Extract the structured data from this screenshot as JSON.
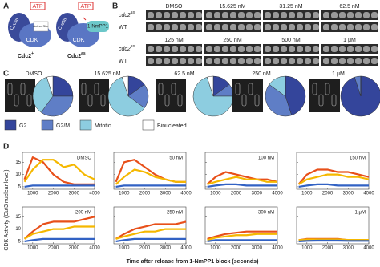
{
  "panel_a": {
    "label": "A",
    "cyclin": "Cyclin",
    "cdk": "CDK",
    "atp": "ATP",
    "site": "Active Site",
    "inhibitor": "1-NmPP1",
    "left_caption": {
      "name": "Cdc2",
      "sup": "+"
    },
    "right_caption": {
      "name": "Cdc2",
      "sup": "as"
    }
  },
  "panel_b": {
    "label": "B",
    "row_labels": [
      {
        "name": "cdc2",
        "sup": "as"
      },
      {
        "name": "WT"
      }
    ],
    "blocks": [
      [
        "DMSO",
        "15.625 nM",
        "31.25 nM",
        "62.5 nM"
      ],
      [
        "125 nM",
        "250 nM",
        "500 nM",
        "1 μM"
      ]
    ]
  },
  "panel_c": {
    "label": "C",
    "legend": [
      {
        "name": "G2",
        "color": "#34459b"
      },
      {
        "name": "G2/M",
        "color": "#5f7ec6"
      },
      {
        "name": "Mitotic",
        "color": "#8dcde0"
      },
      {
        "name": "Binucleated",
        "color": "#ffffff"
      }
    ],
    "pies": [
      {
        "label": "DMSO",
        "values": [
          25,
          35,
          35,
          5
        ]
      },
      {
        "label": "15.625 nM",
        "values": [
          15,
          20,
          60,
          5
        ]
      },
      {
        "label": "62.5 nM",
        "values": [
          15,
          10,
          70,
          5
        ]
      },
      {
        "label": "250 nM",
        "values": [
          45,
          40,
          15,
          0
        ]
      },
      {
        "label": "1 μM",
        "values": [
          95,
          5,
          0,
          0
        ]
      }
    ]
  },
  "panel_d": {
    "label": "D",
    "y_label": "CDK Activity (Cut3 nuclear level)",
    "x_label": "Time after release from 1-NmPP1 block (seconds)",
    "xlim": [
      500,
      4000
    ],
    "ylim": [
      4,
      19
    ],
    "xticks": [
      1000,
      2000,
      3000,
      4000
    ],
    "yticks": [
      5,
      10,
      15
    ],
    "x": [
      600,
      1000,
      1500,
      2000,
      2500,
      3000,
      3500,
      4000
    ],
    "colors": [
      "#e8501a",
      "#f5b800",
      "#3262c4"
    ],
    "plots": [
      {
        "label": "DMSO",
        "series": [
          [
            8,
            17,
            15,
            10,
            7,
            6,
            6,
            6
          ],
          [
            7,
            12,
            16,
            16,
            13,
            14,
            10,
            8
          ],
          [
            5,
            5.5,
            5.5,
            5.5,
            5.5,
            5.5,
            5.5,
            5.5
          ]
        ]
      },
      {
        "label": "50 nM",
        "series": [
          [
            7,
            15,
            16,
            13,
            10,
            8,
            7,
            7
          ],
          [
            6,
            9,
            12,
            11,
            9,
            8,
            7,
            7
          ],
          [
            5,
            5.5,
            5.5,
            5.5,
            5.5,
            5.5,
            5.5,
            5.5
          ]
        ]
      },
      {
        "label": "100 nM",
        "series": [
          [
            6,
            9,
            11,
            10,
            9,
            8,
            8,
            7
          ],
          [
            6,
            7,
            8,
            9,
            8,
            8,
            7,
            7
          ],
          [
            5,
            5.5,
            6,
            6,
            5.5,
            5.5,
            5.5,
            5.5
          ]
        ]
      },
      {
        "label": "150 nM",
        "series": [
          [
            6,
            10,
            12,
            12,
            11,
            11,
            10,
            9
          ],
          [
            6,
            8,
            9,
            10,
            10,
            9,
            9,
            8
          ],
          [
            5,
            5.5,
            6,
            6,
            5.5,
            5.5,
            5.5,
            5.5
          ]
        ]
      },
      {
        "label": "200 nM",
        "series": [
          [
            6,
            9,
            12,
            13,
            13,
            13,
            14,
            15
          ],
          [
            6,
            8,
            9,
            10,
            10,
            11,
            11,
            11
          ],
          [
            5,
            5.5,
            6,
            6,
            6,
            6,
            6,
            6
          ]
        ]
      },
      {
        "label": "250 nM",
        "series": [
          [
            6,
            8,
            10,
            11,
            12,
            12,
            12,
            13
          ],
          [
            6,
            7,
            8,
            9,
            9,
            10,
            10,
            10
          ],
          [
            5,
            5.5,
            6,
            6,
            6,
            6,
            6,
            6
          ]
        ]
      },
      {
        "label": "300 nM",
        "series": [
          [
            6,
            7,
            8,
            8.5,
            9,
            9,
            9,
            9
          ],
          [
            5.5,
            6.5,
            7,
            7.5,
            7.5,
            8,
            8,
            8
          ],
          [
            5,
            5.5,
            5.5,
            5.5,
            5.5,
            5.5,
            5.5,
            5.5
          ]
        ]
      },
      {
        "label": "1 μM",
        "series": [
          [
            5.5,
            6,
            6,
            6,
            6,
            5.5,
            5.5,
            5.5
          ],
          [
            5.5,
            5.8,
            5.8,
            5.8,
            5.8,
            5.6,
            5.6,
            5.6
          ],
          [
            5,
            5.2,
            5.3,
            5.3,
            5.3,
            5.2,
            5.2,
            5.2
          ]
        ]
      }
    ]
  }
}
